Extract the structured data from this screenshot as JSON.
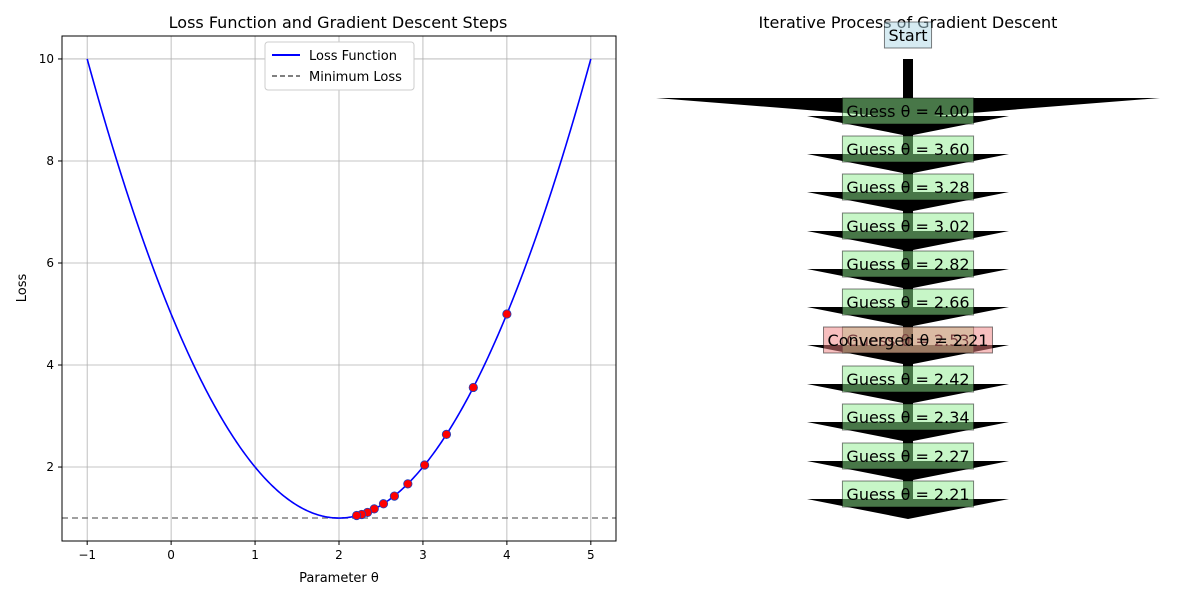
{
  "chart_data": [
    {
      "type": "line",
      "title": "Loss Function and Gradient Descent Steps",
      "xlabel": "Parameter θ",
      "ylabel": "Loss",
      "xlim": [
        -1.3,
        5.3
      ],
      "ylim": [
        0.55,
        10.45
      ],
      "xticks": [
        "−1",
        "0",
        "1",
        "2",
        "3",
        "4",
        "5"
      ],
      "yticks": [
        "2",
        "4",
        "6",
        "8",
        "10"
      ],
      "grid": true,
      "legend_position": "top-center",
      "series": [
        {
          "name": "Loss Function",
          "type": "line",
          "color": "#0000ff",
          "function": "(θ−2)^2 + 1",
          "x_range": [
            -1,
            5
          ]
        },
        {
          "name": "Minimum Loss",
          "type": "hline",
          "color": "#808080",
          "style": "dashed",
          "y": 1
        }
      ],
      "steps": {
        "color": "#ff0000",
        "edge_color": "#1f3fbf",
        "theta": [
          4.0,
          3.6,
          3.28,
          3.02,
          2.82,
          2.66,
          2.53,
          2.42,
          2.34,
          2.27,
          2.21
        ],
        "loss": [
          5.0,
          3.56,
          2.64,
          2.04,
          1.67,
          1.43,
          1.28,
          1.18,
          1.11,
          1.07,
          1.05
        ]
      }
    },
    {
      "type": "flow",
      "title": "Iterative Process of Gradient Descent",
      "start_label": "Start",
      "start_color": "#add8e6",
      "guess_color": "#90ee90",
      "converged_color": "#f08080",
      "guesses": [
        "Guess θ = 4.00",
        "Guess θ = 3.60",
        "Guess θ = 3.28",
        "Guess θ = 3.02",
        "Guess θ = 2.82",
        "Guess θ = 2.66",
        "Guess θ = 2.42",
        "Guess θ = 2.34",
        "Guess θ = 2.27",
        "Guess θ = 2.21"
      ],
      "hidden_guess": "Guess θ = 2.53",
      "converged_label": "Converged θ = 2.21"
    }
  ]
}
